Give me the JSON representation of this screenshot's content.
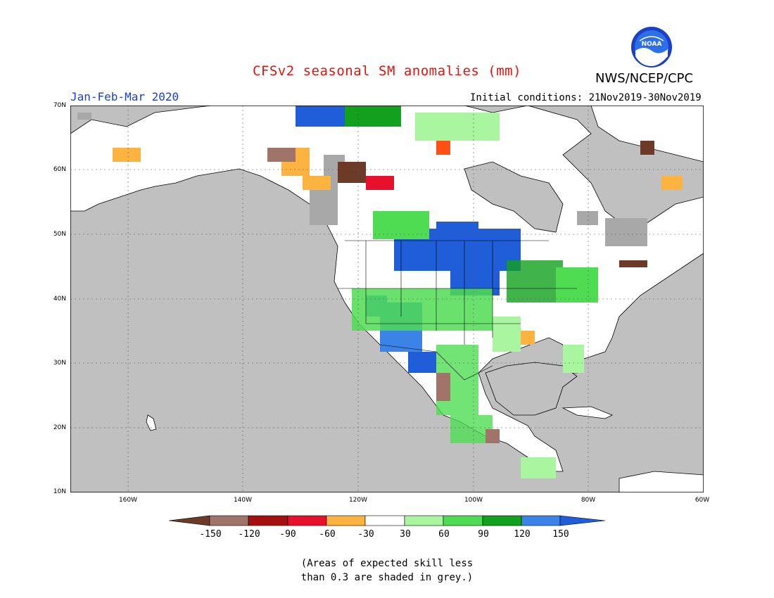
{
  "header": {
    "title": "CFSv2 seasonal SM anomalies (mm)",
    "period": "Jan-Feb-Mar 2020",
    "initial_conditions": "Initial conditions: 21Nov2019-30Nov2019",
    "agency": "NWS/NCEP/CPC",
    "logo_text": "NOAA"
  },
  "map": {
    "lat_labels": [
      "70N",
      "60N",
      "50N",
      "40N",
      "30N",
      "20N",
      "10N"
    ],
    "lon_labels": [
      "160W",
      "140W",
      "120W",
      "100W",
      "80W",
      "60W"
    ],
    "colors": {
      "ocean": "#c0c0c0",
      "land": "#ffffff",
      "low_skill": "#a8a8a8",
      "border": "#000000"
    }
  },
  "legend": {
    "tick_labels": [
      "-150",
      "-120",
      "-90",
      "-60",
      "-30",
      "30",
      "60",
      "90",
      "120",
      "150"
    ],
    "colors": [
      "#6e3a28",
      "#a07468",
      "#a50f0f",
      "#e8112d",
      "#ff4f14",
      "#fcb33f",
      "#ffffff",
      "#a9f5a0",
      "#4fdc52",
      "#12a01e",
      "#3b83e6",
      "#1f5ed8"
    ]
  },
  "note": {
    "line1": "(Areas of expected skill less",
    "line2": "than 0.3 are shaded in grey.)"
  }
}
